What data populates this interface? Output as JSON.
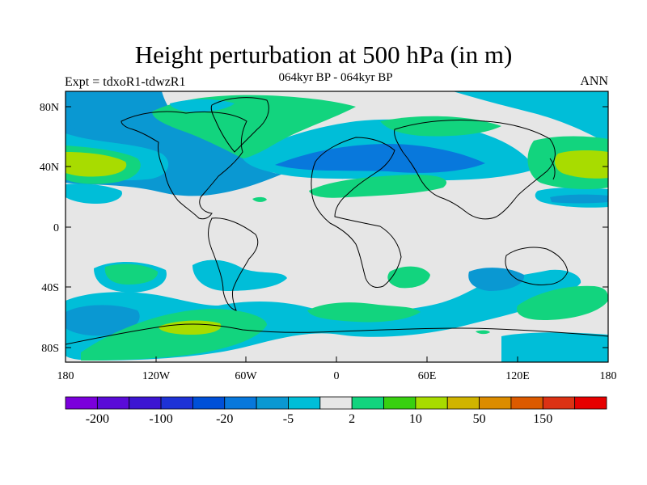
{
  "header": {
    "title": "Height perturbation at 500 hPa (in m)",
    "subtitle": "064kyr BP - 064kyr BP",
    "left_label": "Expt = tdxoR1-tdwzR1",
    "right_label": "ANN"
  },
  "map": {
    "lat_ticks": [
      "80N",
      "40N",
      "0",
      "40S",
      "80S"
    ],
    "lon_ticks": [
      "180",
      "120W",
      "60W",
      "0",
      "60E",
      "120E",
      "180"
    ],
    "background_color": "#e6e6e6"
  },
  "colorbar": {
    "colors": [
      "#7b00dc",
      "#5a0bd8",
      "#3c15d2",
      "#1e32d6",
      "#0050d8",
      "#0878dc",
      "#0a98d2",
      "#00bed8",
      "#e6e6e6",
      "#12d47e",
      "#38d010",
      "#a8dc00",
      "#d0b400",
      "#dc8c00",
      "#dc5a00",
      "#dc3214",
      "#e60000"
    ],
    "labels": [
      "-200",
      "-100",
      "-20",
      "-5",
      "2",
      "10",
      "50",
      "150"
    ]
  }
}
